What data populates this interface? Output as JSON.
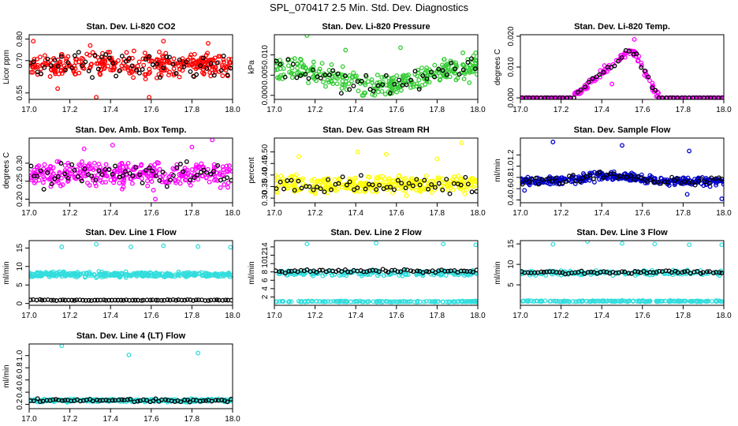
{
  "page_title": "SPL_070417  2.5 Min. Std. Dev. Diagnostics",
  "chart_data": [
    {
      "type": "scatter",
      "title": "Stan. Dev. Li-820 CO2",
      "ylabel": "Licor ppm",
      "xlim": [
        17.0,
        18.0
      ],
      "ylim": [
        0.52,
        0.82
      ],
      "xticks": [
        "17.0",
        "17.2",
        "17.4",
        "17.6",
        "17.8",
        "18.0"
      ],
      "yticks": [
        {
          "v": 0.55,
          "label": "0.55"
        },
        {
          "v": 0.7,
          "label": "0.70"
        },
        {
          "v": 0.8,
          "label": "0.80"
        }
      ],
      "primary_color": "#ff0000",
      "pattern": "band",
      "band": {
        "center": 0.68,
        "spread": 0.045
      },
      "n_main": 320,
      "n_black": 60,
      "outliers": [
        {
          "x": 17.02,
          "y": 0.79
        },
        {
          "x": 17.14,
          "y": 0.57
        },
        {
          "x": 17.3,
          "y": 0.77
        },
        {
          "x": 17.66,
          "y": 0.79
        },
        {
          "x": 17.88,
          "y": 0.78
        },
        {
          "x": 17.33,
          "y": 0.53
        },
        {
          "x": 17.59,
          "y": 0.53
        }
      ]
    },
    {
      "type": "scatter",
      "title": "Stan. Dev. Li-820 Pressure",
      "ylabel": "kPa",
      "xlim": [
        17.0,
        18.0
      ],
      "ylim": [
        -0.001,
        0.015
      ],
      "xticks": [
        "17.0",
        "17.2",
        "17.4",
        "17.6",
        "17.8",
        "18.0"
      ],
      "yticks": [
        {
          "v": 0.0,
          "label": "0.000"
        },
        {
          "v": 0.005,
          "label": "0.005"
        },
        {
          "v": 0.01,
          "label": "0.010"
        }
      ],
      "primary_color": "#33cc33",
      "pattern": "wave",
      "band": {
        "center": 0.0045,
        "spread": 0.0025
      },
      "n_main": 300,
      "n_black": 50,
      "outliers": [
        {
          "x": 17.16,
          "y": 0.0148
        },
        {
          "x": 17.35,
          "y": 0.0112
        },
        {
          "x": 17.62,
          "y": 0.0118
        },
        {
          "x": 17.99,
          "y": 0.0105
        }
      ]
    },
    {
      "type": "scatter",
      "title": "Stan. Dev. Li-820 Temp.",
      "ylabel": "degrees C",
      "xlim": [
        17.0,
        18.0
      ],
      "ylim": [
        -0.0005,
        0.0205
      ],
      "xticks": [
        "17.0",
        "17.2",
        "17.4",
        "17.6",
        "17.8",
        "18.0"
      ],
      "yticks": [
        {
          "v": 0.0,
          "label": "0.000"
        },
        {
          "v": 0.01,
          "label": "0.010"
        },
        {
          "v": 0.02,
          "label": "0.020"
        }
      ],
      "primary_color": "#ff00ff",
      "pattern": "triangle",
      "band": {
        "center": 0.0,
        "spread": 0.0
      },
      "n_main": 220,
      "n_black": 55,
      "outliers": [
        {
          "x": 17.45,
          "y": 0.0045
        },
        {
          "x": 17.56,
          "y": 0.019
        }
      ]
    },
    {
      "type": "scatter",
      "title": "Stan. Dev. Amb. Box Temp.",
      "ylabel": "degrees C",
      "xlim": [
        17.0,
        18.0
      ],
      "ylim": [
        0.19,
        0.37
      ],
      "xticks": [
        "17.0",
        "17.2",
        "17.4",
        "17.6",
        "17.8",
        "18.0"
      ],
      "yticks": [
        {
          "v": 0.2,
          "label": "0.20"
        },
        {
          "v": 0.25,
          "label": "0.25"
        },
        {
          "v": 0.3,
          "label": "0.30"
        }
      ],
      "primary_color": "#ff00ff",
      "pattern": "band",
      "band": {
        "center": 0.27,
        "spread": 0.03
      },
      "n_main": 320,
      "n_black": 60,
      "outliers": [
        {
          "x": 17.9,
          "y": 0.365
        },
        {
          "x": 17.41,
          "y": 0.35
        },
        {
          "x": 17.8,
          "y": 0.345
        },
        {
          "x": 17.27,
          "y": 0.34
        },
        {
          "x": 17.62,
          "y": 0.2
        }
      ]
    },
    {
      "type": "scatter",
      "title": "Stan. Dev. Gas Stream RH",
      "ylabel": "percent",
      "xlim": [
        17.0,
        18.0
      ],
      "ylim": [
        0.28,
        0.56
      ],
      "xticks": [
        "17.0",
        "17.2",
        "17.4",
        "17.6",
        "17.8",
        "18.0"
      ],
      "yticks": [
        {
          "v": 0.3,
          "label": "0.30"
        },
        {
          "v": 0.35,
          "label": "0.35"
        },
        {
          "v": 0.4,
          "label": "0.40"
        },
        {
          "v": 0.45,
          "label": "0.45"
        },
        {
          "v": 0.5,
          "label": "0.50"
        }
      ],
      "primary_color": "#ffff00",
      "pattern": "band",
      "band": {
        "center": 0.36,
        "spread": 0.032
      },
      "n_main": 320,
      "n_black": 55,
      "outliers": [
        {
          "x": 17.92,
          "y": 0.54
        },
        {
          "x": 17.12,
          "y": 0.48
        },
        {
          "x": 17.41,
          "y": 0.5
        },
        {
          "x": 17.55,
          "y": 0.49
        },
        {
          "x": 17.8,
          "y": 0.47
        }
      ]
    },
    {
      "type": "scatter",
      "title": "Stan. Dev. Sample Flow",
      "ylabel": "ml/min",
      "xlim": [
        17.0,
        18.0
      ],
      "ylim": [
        0.35,
        1.5
      ],
      "xticks": [
        "17.0",
        "17.2",
        "17.4",
        "17.6",
        "17.8",
        "18.0"
      ],
      "yticks": [
        {
          "v": 0.4,
          "label": "0.4"
        },
        {
          "v": 0.6,
          "label": "0.6"
        },
        {
          "v": 0.8,
          "label": "0.8"
        },
        {
          "v": 1.0,
          "label": "1.0"
        },
        {
          "v": 1.2,
          "label": "1.2"
        }
      ],
      "primary_color": "#0000cc",
      "pattern": "hump",
      "band": {
        "center": 0.73,
        "spread": 0.06
      },
      "n_main": 340,
      "n_black": 60,
      "outliers": [
        {
          "x": 17.16,
          "y": 1.43
        },
        {
          "x": 17.5,
          "y": 1.37
        },
        {
          "x": 17.83,
          "y": 1.27
        },
        {
          "x": 17.99,
          "y": 0.42
        },
        {
          "x": 17.82,
          "y": 0.5
        },
        {
          "x": 17.02,
          "y": 0.57
        }
      ]
    },
    {
      "type": "scatter",
      "title": "Stan. Dev. Line 1 Flow",
      "ylabel": "ml/min",
      "xlim": [
        17.0,
        18.0
      ],
      "ylim": [
        -0.5,
        17.0
      ],
      "xticks": [
        "17.0",
        "17.2",
        "17.4",
        "17.6",
        "17.8",
        "18.0"
      ],
      "yticks": [
        {
          "v": 0,
          "label": "0"
        },
        {
          "v": 5,
          "label": "5"
        },
        {
          "v": 10,
          "label": "10"
        },
        {
          "v": 15,
          "label": "15"
        }
      ],
      "primary_color": "#33dddd",
      "pattern": "band",
      "band": {
        "center": 7.8,
        "spread": 0.55
      },
      "black_center": 0.9,
      "black_spread": 0.1,
      "n_main": 340,
      "n_black": 70,
      "outliers": [
        {
          "x": 17.16,
          "y": 15.3
        },
        {
          "x": 17.33,
          "y": 16.0
        },
        {
          "x": 17.5,
          "y": 15.3
        },
        {
          "x": 17.66,
          "y": 15.6
        },
        {
          "x": 17.83,
          "y": 15.4
        },
        {
          "x": 17.99,
          "y": 15.2
        }
      ]
    },
    {
      "type": "scatter",
      "title": "Stan. Dev. Line 2 Flow",
      "ylabel": "ml/min",
      "xlim": [
        17.0,
        18.0
      ],
      "ylim": [
        0.0,
        15.5
      ],
      "xticks": [
        "17.0",
        "17.2",
        "17.4",
        "17.6",
        "17.8",
        "18.0"
      ],
      "yticks": [
        {
          "v": 2,
          "label": "2"
        },
        {
          "v": 4,
          "label": "4"
        },
        {
          "v": 6,
          "label": "6"
        },
        {
          "v": 8,
          "label": "8"
        },
        {
          "v": 10,
          "label": "10"
        },
        {
          "v": 12,
          "label": "12"
        },
        {
          "v": 14,
          "label": "14"
        }
      ],
      "primary_color": "#33dddd",
      "pattern": "dual",
      "band": {
        "center": 7.7,
        "spread": 0.55
      },
      "low_band": {
        "center": 0.9,
        "spread": 0.12
      },
      "black_center": 8.2,
      "black_spread": 0.3,
      "n_main": 340,
      "n_black": 65,
      "outliers": [
        {
          "x": 17.16,
          "y": 14.7
        },
        {
          "x": 17.5,
          "y": 14.9
        },
        {
          "x": 17.83,
          "y": 14.7
        },
        {
          "x": 17.99,
          "y": 14.5
        }
      ]
    },
    {
      "type": "scatter",
      "title": "Stan. Dev. Line 3 Flow",
      "ylabel": "ml/min",
      "xlim": [
        17.0,
        18.0
      ],
      "ylim": [
        0.0,
        15.8
      ],
      "xticks": [
        "17.0",
        "17.2",
        "17.4",
        "17.6",
        "17.8",
        "18.0"
      ],
      "yticks": [
        {
          "v": 5,
          "label": "5"
        },
        {
          "v": 10,
          "label": "10"
        },
        {
          "v": 15,
          "label": "15"
        }
      ],
      "primary_color": "#33dddd",
      "pattern": "dual",
      "band": {
        "center": 7.9,
        "spread": 0.5
      },
      "low_band": {
        "center": 1.0,
        "spread": 0.12
      },
      "black_center": 8.1,
      "black_spread": 0.3,
      "n_main": 340,
      "n_black": 65,
      "outliers": [
        {
          "x": 17.16,
          "y": 14.9
        },
        {
          "x": 17.33,
          "y": 15.6
        },
        {
          "x": 17.5,
          "y": 15.1
        },
        {
          "x": 17.66,
          "y": 15.0
        },
        {
          "x": 17.83,
          "y": 14.8
        },
        {
          "x": 17.99,
          "y": 14.8
        }
      ]
    },
    {
      "type": "scatter",
      "title": "Stan. Dev. Line 4 (LT) Flow",
      "ylabel": "ml/min",
      "xlim": [
        17.0,
        18.0
      ],
      "ylim": [
        0.13,
        1.19
      ],
      "xticks": [
        "17.0",
        "17.2",
        "17.4",
        "17.6",
        "17.8",
        "18.0"
      ],
      "yticks": [
        {
          "v": 0.2,
          "label": "0.2"
        },
        {
          "v": 0.4,
          "label": "0.4"
        },
        {
          "v": 0.6,
          "label": "0.6"
        },
        {
          "v": 0.8,
          "label": "0.8"
        },
        {
          "v": 1.0,
          "label": "1.0"
        }
      ],
      "primary_color": "#33dddd",
      "pattern": "band",
      "band": {
        "center": 0.265,
        "spread": 0.02
      },
      "n_main": 320,
      "n_black": 65,
      "outliers": [
        {
          "x": 17.16,
          "y": 1.16
        },
        {
          "x": 17.49,
          "y": 1.01
        },
        {
          "x": 17.83,
          "y": 1.04
        }
      ]
    }
  ]
}
